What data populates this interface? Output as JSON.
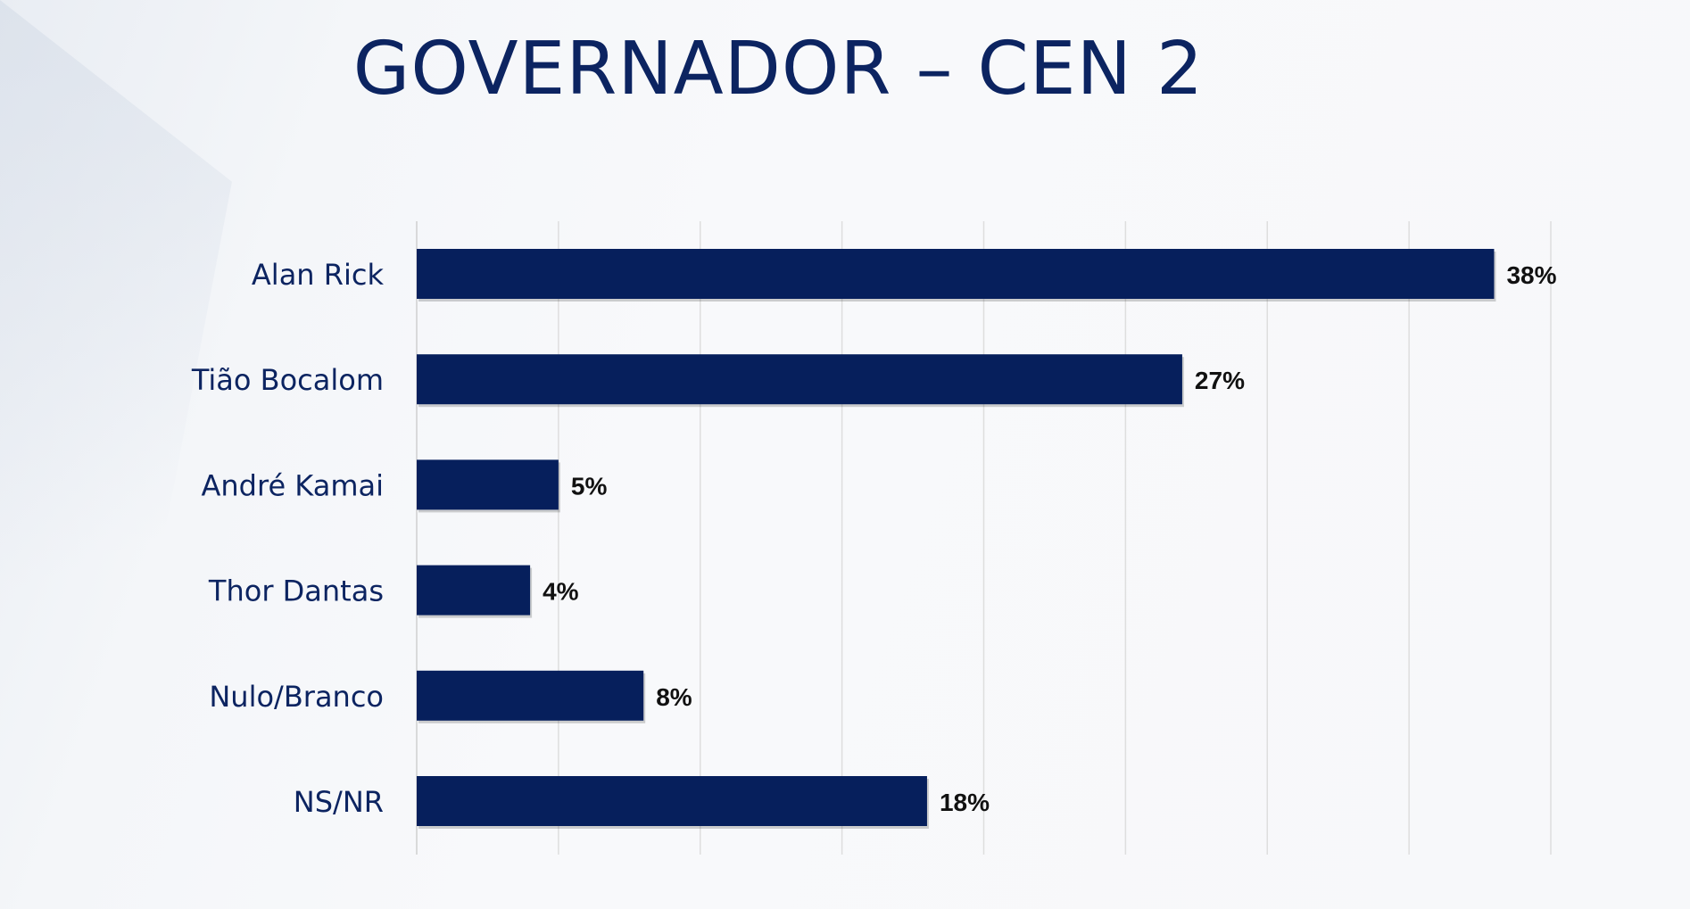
{
  "chart_data": {
    "type": "bar",
    "orientation": "horizontal",
    "title": "GOVERNADOR – CEN 2",
    "categories": [
      "Alan Rick",
      "Tião Bocalom",
      "André Kamai",
      "Thor Dantas",
      "Nulo/Branco",
      "NS/NR"
    ],
    "values": [
      38,
      27,
      5,
      4,
      8,
      18
    ],
    "data_labels": [
      "38%",
      "27%",
      "5%",
      "4%",
      "8%",
      "18%"
    ],
    "xlim": [
      0,
      40
    ],
    "grid": true,
    "bar_color": "#061f5c",
    "label_color": "#0c2461",
    "value_label_color": "#111111"
  }
}
